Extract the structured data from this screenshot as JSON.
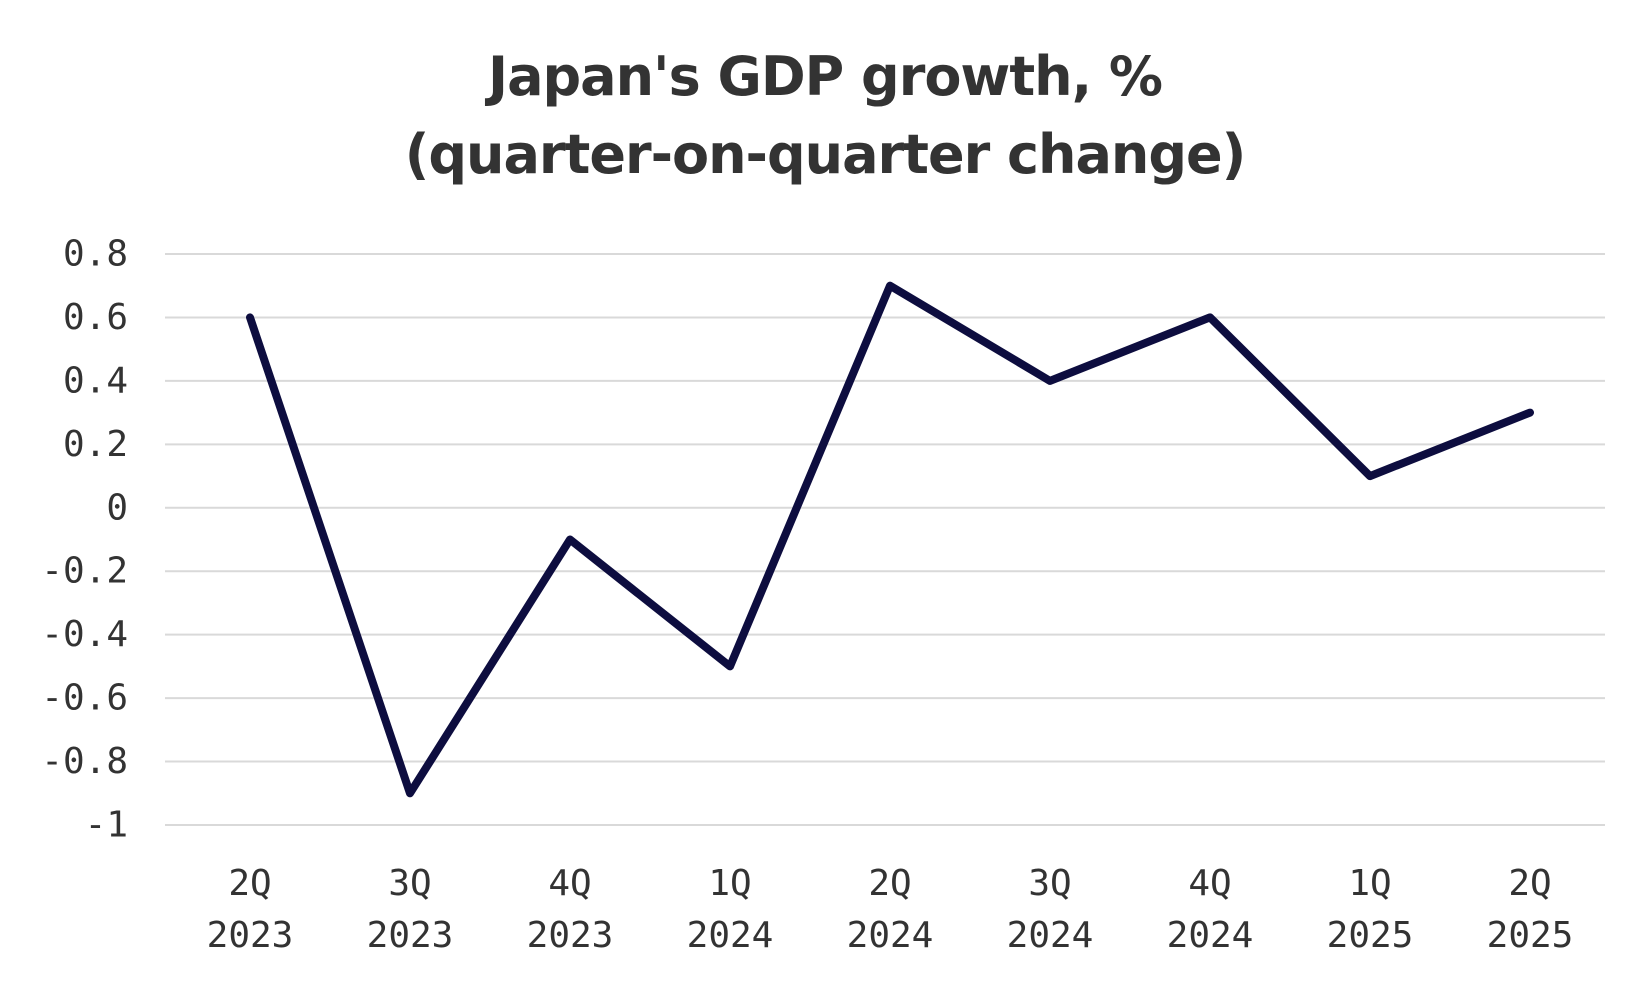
{
  "chart_data": {
    "type": "line",
    "title": "Japan's GDP growth, %",
    "subtitle": "(quarter-on-quarter change)",
    "categories": [
      [
        "2Q",
        "2023"
      ],
      [
        "3Q",
        "2023"
      ],
      [
        "4Q",
        "2023"
      ],
      [
        "1Q",
        "2024"
      ],
      [
        "2Q",
        "2024"
      ],
      [
        "3Q",
        "2024"
      ],
      [
        "4Q",
        "2024"
      ],
      [
        "1Q",
        "2025"
      ],
      [
        "2Q",
        "2025"
      ]
    ],
    "series": [
      {
        "values": [
          0.6,
          -0.9,
          -0.1,
          -0.5,
          0.7,
          0.4,
          0.6,
          0.1,
          0.3
        ],
        "color": "#0d0d3f"
      }
    ],
    "yticks": [
      "0.8",
      "0.6",
      "0.4",
      "0.2",
      "0",
      "-0.2",
      "-0.4",
      "-0.6",
      "-0.8",
      "-1"
    ],
    "ylim": [
      -1,
      0.8
    ],
    "grid": true,
    "legend": "none",
    "gridColor": "#d9d9d9"
  }
}
